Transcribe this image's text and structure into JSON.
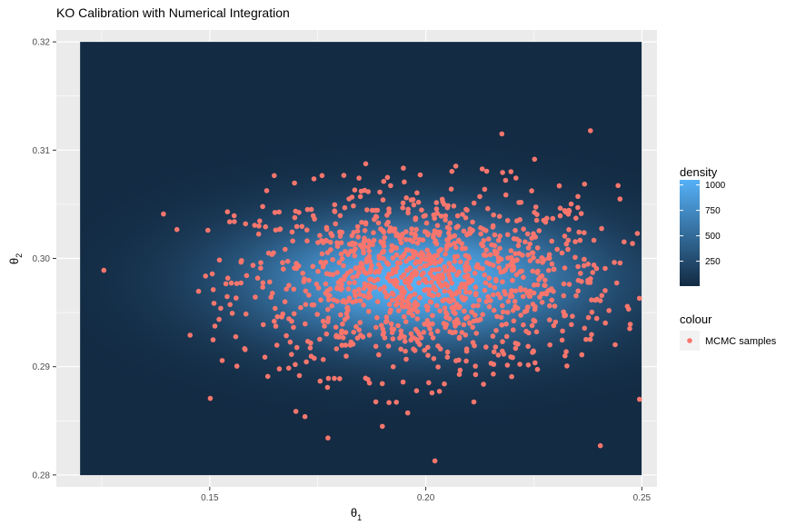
{
  "chart_data": {
    "type": "heatmap",
    "title": "KO Calibration with Numerical Integration",
    "xlabel": "θ",
    "xlabel_sub": "1",
    "ylabel": "θ",
    "ylabel_sub": "2",
    "xlim": [
      0.1145,
      0.2535
    ],
    "ylim": [
      0.2789,
      0.3211
    ],
    "x_ticks": [
      0.15,
      0.2,
      0.25
    ],
    "x_tick_labels": [
      "0.15",
      "0.20",
      "0.25"
    ],
    "y_ticks": [
      0.28,
      0.29,
      0.3,
      0.31,
      0.32
    ],
    "y_tick_labels": [
      "0.28",
      "0.29",
      "0.30",
      "0.31",
      "0.32"
    ],
    "grid": true,
    "density": {
      "x_range": [
        0.12,
        0.25
      ],
      "y_range": [
        0.28,
        0.32
      ],
      "center": [
        0.198,
        0.298
      ],
      "spread": [
        0.028,
        0.0042
      ],
      "max": 1050,
      "min": 5,
      "legend_title": "density",
      "legend_ticks": [
        250,
        500,
        750,
        1000
      ],
      "legend_tick_labels": [
        "250",
        "500",
        "750",
        "1000"
      ],
      "color_low": "#132B43",
      "color_high": "#56B1F7"
    },
    "scatter": {
      "name": "MCMC samples",
      "legend_title": "colour",
      "color": "#F8766D",
      "count": 1200,
      "center": [
        0.2,
        0.298
      ],
      "sd": [
        0.022,
        0.0043
      ],
      "outliers": [
        [
          0.1255,
          0.2989
        ],
        [
          0.1393,
          0.3041
        ],
        [
          0.2021,
          0.2813
        ],
        [
          0.2381,
          0.3118
        ],
        [
          0.2404,
          0.2827
        ],
        [
          0.2176,
          0.3115
        ]
      ]
    }
  }
}
